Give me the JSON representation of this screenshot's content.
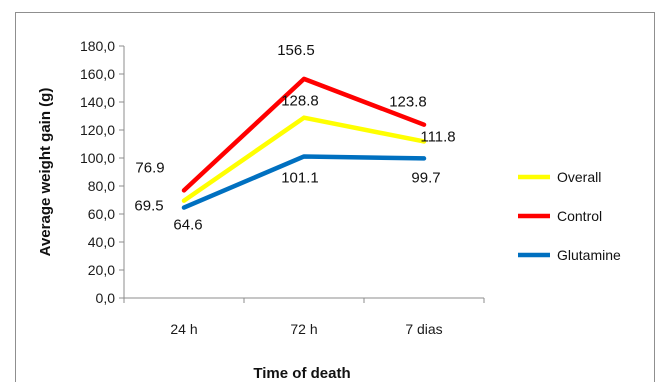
{
  "chart_data": {
    "type": "line",
    "title": "",
    "xlabel": "Time of death",
    "ylabel": "Average weight gain (g)",
    "categories": [
      "24 h",
      "72 h",
      "7 dias"
    ],
    "ylim": [
      0,
      180
    ],
    "yticks": [
      "0,0",
      "20,0",
      "40,0",
      "60,0",
      "80,0",
      "100,0",
      "120,0",
      "140,0",
      "160,0",
      "180,0"
    ],
    "ytick_values": [
      0,
      20,
      40,
      60,
      80,
      100,
      120,
      140,
      160,
      180
    ],
    "grid": false,
    "legend_position": "right",
    "series": [
      {
        "name": "Overall",
        "color": "#ffff00",
        "values": [
          69.5,
          128.8,
          111.8
        ],
        "labels": [
          "69.5",
          "128.8",
          "111.8"
        ]
      },
      {
        "name": "Control",
        "color": "#ff0000",
        "values": [
          76.9,
          156.5,
          123.8
        ],
        "labels": [
          "76.9",
          "156.5",
          "123.8"
        ]
      },
      {
        "name": "Glutamine",
        "color": "#0070c0",
        "values": [
          64.6,
          101.1,
          99.7
        ],
        "labels": [
          "64.6",
          "101.1",
          "99.7"
        ]
      }
    ]
  }
}
